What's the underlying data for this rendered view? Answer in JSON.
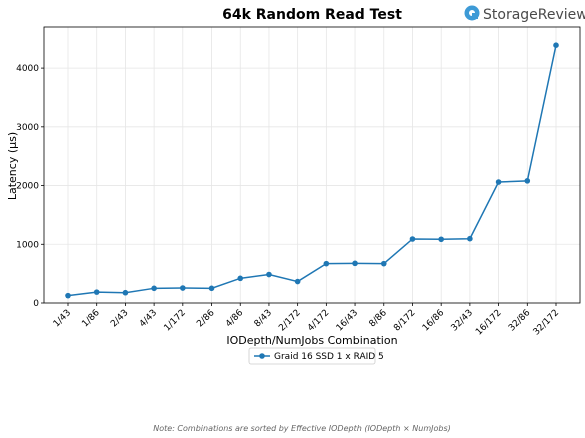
{
  "chart_data": {
    "type": "line",
    "title": "64k Random Read Test",
    "xlabel": "IODepth/NumJobs Combination",
    "ylabel": "Latency (µs)",
    "categories": [
      "1/43",
      "1/86",
      "2/43",
      "4/43",
      "1/172",
      "2/86",
      "4/86",
      "8/43",
      "2/172",
      "4/172",
      "16/43",
      "8/86",
      "8/172",
      "16/86",
      "32/43",
      "16/172",
      "32/86",
      "32/172"
    ],
    "series": [
      {
        "name": "Graid 16 SSD 1 x RAID 5",
        "values": [
          125,
          185,
          175,
          250,
          255,
          250,
          420,
          485,
          365,
          670,
          675,
          670,
          1090,
          1085,
          1095,
          2060,
          2080,
          4390
        ],
        "color": "#1f77b4"
      }
    ],
    "ylim": [
      0,
      4700
    ],
    "yticks": [
      0,
      1000,
      2000,
      3000,
      4000
    ],
    "grid": true,
    "legend_position": "bottom-center",
    "note": "Note: Combinations are sorted by Effective IODepth (IODepth × NumJobs)"
  },
  "brand": {
    "name": "StorageReview",
    "icon": "storagereview-logo-icon",
    "color": "#3d9ad6"
  }
}
